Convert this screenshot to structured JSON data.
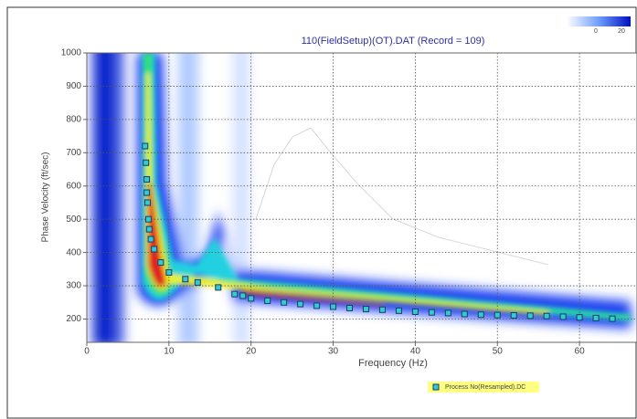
{
  "chart_data": {
    "type": "scatter",
    "title": "110(FieldSetup)(OT).DAT (Record = 109)",
    "x_label": "Frequency (Hz)",
    "y_label": "Phase Velocity (ft/sec)",
    "xlim": [
      0,
      67
    ],
    "xticks": [
      0,
      10,
      20,
      30,
      40,
      50,
      60
    ],
    "ylim": [
      130,
      1000
    ],
    "yticks": [
      200,
      300,
      400,
      500,
      600,
      700,
      800,
      900,
      1000
    ],
    "grid": true,
    "colorbar_ticks": [
      0,
      20
    ],
    "x": [
      7.1,
      7.2,
      7.3,
      7.3,
      7.4,
      7.5,
      7.6,
      7.8,
      8.2,
      9.0,
      10.0,
      12.0,
      13.5,
      16.0,
      18.0,
      19.0,
      20.0,
      22.0,
      24.0,
      26.0,
      28.0,
      30.0,
      32.0,
      34.0,
      36.0,
      38.0,
      40.0,
      42.0,
      44.0,
      46.0,
      48.0,
      50.0,
      52.0,
      54.0,
      56.0,
      58.0,
      60.0,
      62.0,
      64.0
    ],
    "series": [
      {
        "name": "Process No(Resampled).DC",
        "color": "#33cccc",
        "values": [
          720,
          670,
          620,
          580,
          550,
          500,
          470,
          440,
          410,
          370,
          340,
          320,
          310,
          295,
          275,
          270,
          262,
          255,
          250,
          245,
          240,
          237,
          233,
          230,
          228,
          225,
          222,
          220,
          218,
          215,
          213,
          212,
          211,
          210,
          209,
          207,
          205,
          203,
          201
        ]
      }
    ],
    "legend": "bottom"
  }
}
